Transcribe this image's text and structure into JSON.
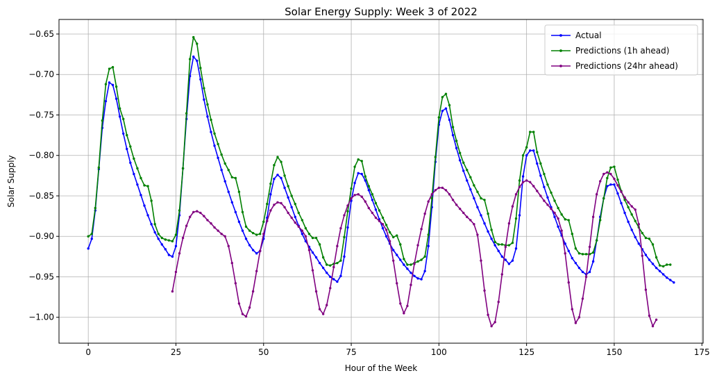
{
  "chart_data": {
    "type": "line",
    "title": "Solar Energy Supply: Week 3 of 2022",
    "xlabel": "Hour of the Week",
    "ylabel": "Solar Supply",
    "xlim": [
      -8.35,
      175.35
    ],
    "ylim": [
      -1.032,
      -0.632
    ],
    "xticks": [
      0,
      25,
      50,
      75,
      100,
      125,
      150,
      175
    ],
    "yticks": [
      -1.0,
      -0.95,
      -0.9,
      -0.85,
      -0.8,
      -0.75,
      -0.7,
      -0.65
    ],
    "grid": true,
    "legend_position": "top-right",
    "series": [
      {
        "name": "Actual",
        "color": "#0000ff",
        "x_start": 0,
        "values": [
          -0.915,
          -0.903,
          -0.868,
          -0.817,
          -0.766,
          -0.733,
          -0.71,
          -0.713,
          -0.73,
          -0.752,
          -0.773,
          -0.792,
          -0.809,
          -0.823,
          -0.836,
          -0.849,
          -0.862,
          -0.874,
          -0.885,
          -0.895,
          -0.903,
          -0.91,
          -0.916,
          -0.923,
          -0.925,
          -0.912,
          -0.874,
          -0.816,
          -0.755,
          -0.702,
          -0.678,
          -0.683,
          -0.706,
          -0.731,
          -0.752,
          -0.771,
          -0.788,
          -0.803,
          -0.818,
          -0.832,
          -0.845,
          -0.858,
          -0.87,
          -0.882,
          -0.893,
          -0.903,
          -0.911,
          -0.917,
          -0.921,
          -0.918,
          -0.903,
          -0.877,
          -0.848,
          -0.829,
          -0.824,
          -0.828,
          -0.84,
          -0.852,
          -0.864,
          -0.876,
          -0.887,
          -0.897,
          -0.906,
          -0.913,
          -0.92,
          -0.926,
          -0.933,
          -0.939,
          -0.945,
          -0.95,
          -0.953,
          -0.956,
          -0.949,
          -0.925,
          -0.889,
          -0.856,
          -0.834,
          -0.822,
          -0.823,
          -0.831,
          -0.843,
          -0.855,
          -0.867,
          -0.879,
          -0.89,
          -0.9,
          -0.909,
          -0.917,
          -0.923,
          -0.929,
          -0.935,
          -0.94,
          -0.945,
          -0.949,
          -0.952,
          -0.953,
          -0.943,
          -0.912,
          -0.864,
          -0.808,
          -0.762,
          -0.745,
          -0.742,
          -0.756,
          -0.775,
          -0.791,
          -0.806,
          -0.819,
          -0.831,
          -0.842,
          -0.853,
          -0.864,
          -0.874,
          -0.884,
          -0.894,
          -0.903,
          -0.911,
          -0.918,
          -0.925,
          -0.929,
          -0.934,
          -0.93,
          -0.915,
          -0.874,
          -0.826,
          -0.8,
          -0.794,
          -0.794,
          -0.81,
          -0.825,
          -0.839,
          -0.852,
          -0.864,
          -0.876,
          -0.888,
          -0.899,
          -0.909,
          -0.918,
          -0.927,
          -0.933,
          -0.939,
          -0.944,
          -0.947,
          -0.944,
          -0.931,
          -0.905,
          -0.876,
          -0.853,
          -0.838,
          -0.836,
          -0.836,
          -0.847,
          -0.859,
          -0.871,
          -0.882,
          -0.892,
          -0.901,
          -0.909,
          -0.916,
          -0.923,
          -0.929,
          -0.934,
          -0.939,
          -0.943,
          -0.947,
          -0.951,
          -0.954,
          -0.957
        ]
      },
      {
        "name": "Predictions (1h ahead)",
        "color": "#008000",
        "x_start": 0,
        "values": [
          -0.9,
          -0.897,
          -0.865,
          -0.815,
          -0.757,
          -0.712,
          -0.693,
          -0.691,
          -0.715,
          -0.742,
          -0.755,
          -0.775,
          -0.789,
          -0.804,
          -0.816,
          -0.828,
          -0.837,
          -0.838,
          -0.856,
          -0.885,
          -0.897,
          -0.902,
          -0.904,
          -0.905,
          -0.906,
          -0.898,
          -0.868,
          -0.816,
          -0.748,
          -0.681,
          -0.654,
          -0.662,
          -0.692,
          -0.717,
          -0.737,
          -0.756,
          -0.773,
          -0.786,
          -0.799,
          -0.81,
          -0.818,
          -0.827,
          -0.828,
          -0.845,
          -0.87,
          -0.888,
          -0.893,
          -0.896,
          -0.898,
          -0.897,
          -0.882,
          -0.86,
          -0.835,
          -0.812,
          -0.802,
          -0.808,
          -0.825,
          -0.838,
          -0.85,
          -0.86,
          -0.871,
          -0.88,
          -0.89,
          -0.897,
          -0.902,
          -0.902,
          -0.91,
          -0.926,
          -0.935,
          -0.936,
          -0.934,
          -0.933,
          -0.93,
          -0.901,
          -0.869,
          -0.841,
          -0.814,
          -0.805,
          -0.807,
          -0.826,
          -0.838,
          -0.848,
          -0.859,
          -0.868,
          -0.877,
          -0.886,
          -0.895,
          -0.901,
          -0.899,
          -0.91,
          -0.928,
          -0.935,
          -0.935,
          -0.933,
          -0.931,
          -0.929,
          -0.925,
          -0.898,
          -0.853,
          -0.802,
          -0.753,
          -0.728,
          -0.724,
          -0.738,
          -0.765,
          -0.782,
          -0.797,
          -0.809,
          -0.818,
          -0.827,
          -0.837,
          -0.845,
          -0.853,
          -0.855,
          -0.872,
          -0.892,
          -0.907,
          -0.91,
          -0.91,
          -0.911,
          -0.911,
          -0.908,
          -0.878,
          -0.831,
          -0.8,
          -0.79,
          -0.771,
          -0.771,
          -0.796,
          -0.81,
          -0.823,
          -0.836,
          -0.846,
          -0.856,
          -0.865,
          -0.873,
          -0.879,
          -0.88,
          -0.897,
          -0.915,
          -0.921,
          -0.922,
          -0.922,
          -0.922,
          -0.92,
          -0.905,
          -0.88,
          -0.853,
          -0.828,
          -0.815,
          -0.814,
          -0.83,
          -0.844,
          -0.855,
          -0.864,
          -0.873,
          -0.881,
          -0.889,
          -0.896,
          -0.902,
          -0.903,
          -0.91,
          -0.926,
          -0.936,
          -0.937,
          -0.935,
          -0.935
        ]
      },
      {
        "name": "Predictions (24hr ahead)",
        "color": "#800080",
        "x_start": 24,
        "values": [
          -0.968,
          -0.944,
          -0.921,
          -0.902,
          -0.887,
          -0.876,
          -0.87,
          -0.869,
          -0.871,
          -0.875,
          -0.88,
          -0.884,
          -0.889,
          -0.893,
          -0.897,
          -0.9,
          -0.912,
          -0.933,
          -0.958,
          -0.983,
          -0.996,
          -0.999,
          -0.988,
          -0.968,
          -0.943,
          -0.918,
          -0.897,
          -0.881,
          -0.868,
          -0.861,
          -0.858,
          -0.859,
          -0.864,
          -0.871,
          -0.877,
          -0.883,
          -0.888,
          -0.893,
          -0.9,
          -0.917,
          -0.942,
          -0.968,
          -0.99,
          -0.996,
          -0.985,
          -0.964,
          -0.938,
          -0.912,
          -0.89,
          -0.874,
          -0.862,
          -0.853,
          -0.849,
          -0.848,
          -0.851,
          -0.857,
          -0.865,
          -0.871,
          -0.877,
          -0.881,
          -0.885,
          -0.892,
          -0.906,
          -0.93,
          -0.958,
          -0.983,
          -0.995,
          -0.986,
          -0.96,
          -0.934,
          -0.911,
          -0.891,
          -0.872,
          -0.857,
          -0.848,
          -0.843,
          -0.84,
          -0.84,
          -0.843,
          -0.848,
          -0.855,
          -0.861,
          -0.866,
          -0.871,
          -0.876,
          -0.88,
          -0.885,
          -0.898,
          -0.93,
          -0.967,
          -0.997,
          -1.011,
          -1.006,
          -0.981,
          -0.947,
          -0.913,
          -0.884,
          -0.863,
          -0.848,
          -0.839,
          -0.833,
          -0.831,
          -0.833,
          -0.838,
          -0.844,
          -0.85,
          -0.856,
          -0.861,
          -0.866,
          -0.871,
          -0.878,
          -0.893,
          -0.921,
          -0.957,
          -0.99,
          -1.007,
          -1.0,
          -0.977,
          -0.95,
          -0.913,
          -0.876,
          -0.848,
          -0.832,
          -0.823,
          -0.821,
          -0.823,
          -0.829,
          -0.837,
          -0.845,
          -0.852,
          -0.858,
          -0.863,
          -0.867,
          -0.885,
          -0.924,
          -0.966,
          -0.998,
          -1.011,
          -1.003
        ]
      }
    ]
  }
}
